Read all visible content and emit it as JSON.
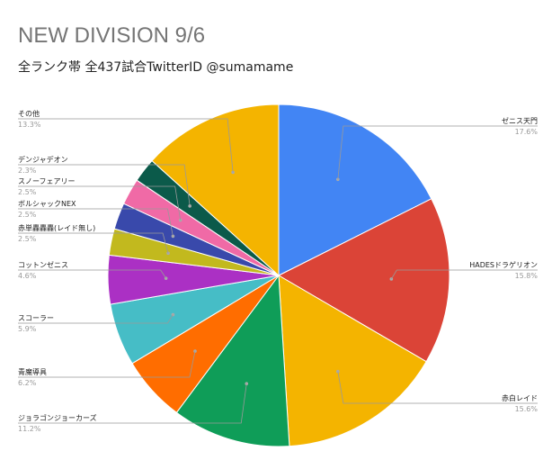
{
  "chart_data": {
    "type": "pie",
    "title": "NEW DIVISION 9/6",
    "subtitle": "全ランク帯 全437試合TwitterID @sumamame",
    "slices": [
      {
        "label": "ゼニス天門",
        "percent_label": "17.6%",
        "value": 17.6,
        "color": "#4285f4",
        "side": "right"
      },
      {
        "label": "HADESドラゲリオン",
        "percent_label": "15.8%",
        "value": 15.8,
        "color": "#db4437",
        "side": "right"
      },
      {
        "label": "赤白レイド",
        "percent_label": "15.6%",
        "value": 15.6,
        "color": "#f4b400",
        "side": "right"
      },
      {
        "label": "ジョラゴンジョーカーズ",
        "percent_label": "11.2%",
        "value": 11.2,
        "color": "#0f9d58",
        "side": "left"
      },
      {
        "label": "青魔導具",
        "percent_label": "6.2%",
        "value": 6.2,
        "color": "#ff6d00",
        "side": "left"
      },
      {
        "label": "スコーラー",
        "percent_label": "5.9%",
        "value": 5.9,
        "color": "#46bdc6",
        "side": "left"
      },
      {
        "label": "コットンゼニス",
        "percent_label": "4.6%",
        "value": 4.6,
        "color": "#ab30c4",
        "side": "left"
      },
      {
        "label": "赤単轟轟轟(レイド無し)",
        "percent_label": "2.5%",
        "value": 2.5,
        "color": "#c2b91e",
        "side": "left"
      },
      {
        "label": "ボルシャックNEX",
        "percent_label": "2.5%",
        "value": 2.5,
        "color": "#3949ab",
        "side": "left"
      },
      {
        "label": "スノーフェアリー",
        "percent_label": "2.5%",
        "value": 2.5,
        "color": "#f06aa6",
        "side": "left"
      },
      {
        "label": "デンジャデオン",
        "percent_label": "2.3%",
        "value": 2.3,
        "color": "#0b5a4a",
        "side": "left"
      },
      {
        "label": "その他",
        "percent_label": "13.3%",
        "value": 13.3,
        "color": "#f4b400",
        "side": "left"
      }
    ]
  }
}
